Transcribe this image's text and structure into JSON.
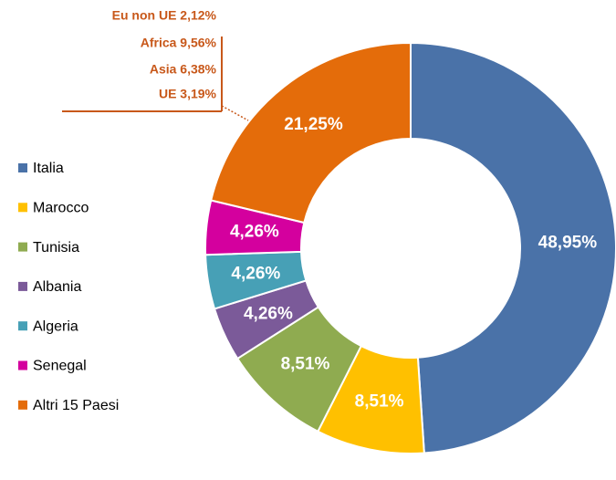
{
  "chart_data": {
    "type": "donut",
    "categories": [
      "Italia",
      "Marocco",
      "Tunisia",
      "Albania",
      "Algeria",
      "Senegal",
      "Altri 15 Paesi"
    ],
    "values": [
      48.95,
      8.51,
      8.51,
      4.26,
      4.26,
      4.26,
      21.25
    ],
    "value_labels": [
      "48,95%",
      "8,51%",
      "8,51%",
      "4,26%",
      "4,26%",
      "4,26%",
      "21,25%"
    ],
    "colors": [
      "#4a72a8",
      "#ffc000",
      "#8fab50",
      "#7b5a99",
      "#47a0b6",
      "#d4009e",
      "#e46c0a"
    ],
    "legend": "left",
    "annotations": [
      "Eu non UE 2,12%",
      "Africa 9,56%",
      "Asia 6,38%",
      "UE 3,19%"
    ]
  }
}
